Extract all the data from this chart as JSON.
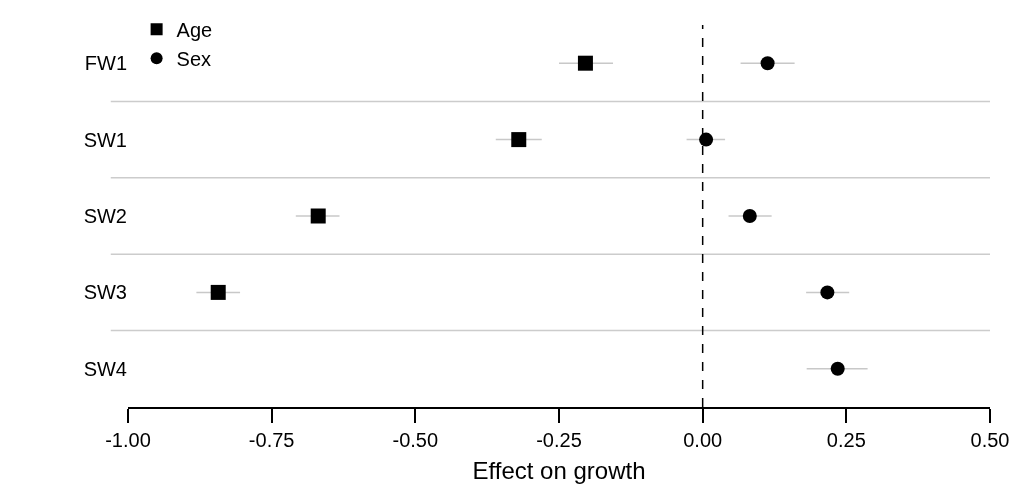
{
  "chart_data": {
    "type": "scatter",
    "orientation": "horizontal",
    "xlabel": "Effect on growth",
    "categories": [
      "FW1",
      "SW1",
      "SW2",
      "SW3",
      "SW4"
    ],
    "series": [
      {
        "name": "Age",
        "color": "#000000",
        "marker": "square",
        "values": [
          -0.204,
          -0.32,
          -0.669,
          -0.843,
          null
        ],
        "errors": [
          [
            -0.25,
            -0.156
          ],
          [
            -0.36,
            -0.28
          ],
          [
            -0.708,
            -0.632
          ],
          [
            -0.881,
            -0.805
          ],
          null
        ]
      },
      {
        "name": "Sex",
        "color": "#000000",
        "marker": "circle",
        "values": [
          0.113,
          0.006,
          0.082,
          0.217,
          0.235
        ],
        "errors": [
          [
            0.066,
            0.16
          ],
          [
            -0.028,
            0.039
          ],
          [
            0.045,
            0.12
          ],
          [
            0.18,
            0.255
          ],
          [
            0.181,
            0.287
          ]
        ]
      }
    ],
    "xlim": [
      -1.0,
      0.5
    ],
    "xticks": [
      {
        "value": -1.0,
        "label": "-1.00"
      },
      {
        "value": -0.75,
        "label": "-0.75"
      },
      {
        "value": -0.5,
        "label": "-0.50"
      },
      {
        "value": -0.25,
        "label": "-0.25"
      },
      {
        "value": 0.0,
        "label": "0.00"
      },
      {
        "value": 0.25,
        "label": "0.25"
      },
      {
        "value": 0.5,
        "label": "0.50"
      }
    ],
    "ref_lines": [
      {
        "axis": "x",
        "value": 0,
        "line_style": "dashed",
        "color": "#000000"
      }
    ],
    "grid": "y",
    "legend": "top left"
  }
}
